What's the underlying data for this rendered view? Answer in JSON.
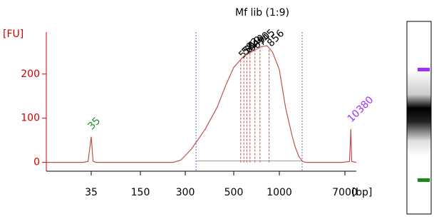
{
  "chart_data": {
    "type": "line",
    "title": "Mf lib (1:9)",
    "y_label": "[FU]",
    "x_label": "[bp]",
    "x": [
      15,
      30,
      33,
      35,
      37,
      40,
      100,
      250,
      280,
      320,
      370,
      420,
      460,
      500,
      580,
      670,
      760,
      830,
      900,
      1000,
      1100,
      1200,
      1330,
      1460,
      1600,
      1800,
      2000,
      2200,
      3000,
      6500,
      9500,
      10000,
      10380,
      10700,
      11000,
      15000
    ],
    "series": [
      {
        "color": "#c0504d",
        "values": [
          0,
          0,
          2,
          58,
          3,
          0,
          0,
          0,
          5,
          30,
          75,
          125,
          175,
          215,
          240,
          252,
          262,
          264,
          250,
          210,
          165,
          125,
          90,
          60,
          35,
          12,
          2,
          0,
          0,
          0,
          2,
          40,
          75,
          40,
          2,
          0
        ]
      }
    ],
    "xlim": [
      15,
      15000
    ],
    "xticks": [
      35,
      150,
      300,
      500,
      1000,
      7000
    ],
    "ylim": [
      -20,
      295
    ],
    "yticks": [
      0,
      100,
      200
    ],
    "region_bounds": [
      336,
      1967
    ],
    "peak_labels": [
      556,
      583,
      610,
      640,
      690,
      745,
      856
    ],
    "markers": [
      {
        "x": 35,
        "color": "#2a8a2a"
      },
      {
        "x": 10380,
        "color": "#9b30ff"
      }
    ]
  }
}
